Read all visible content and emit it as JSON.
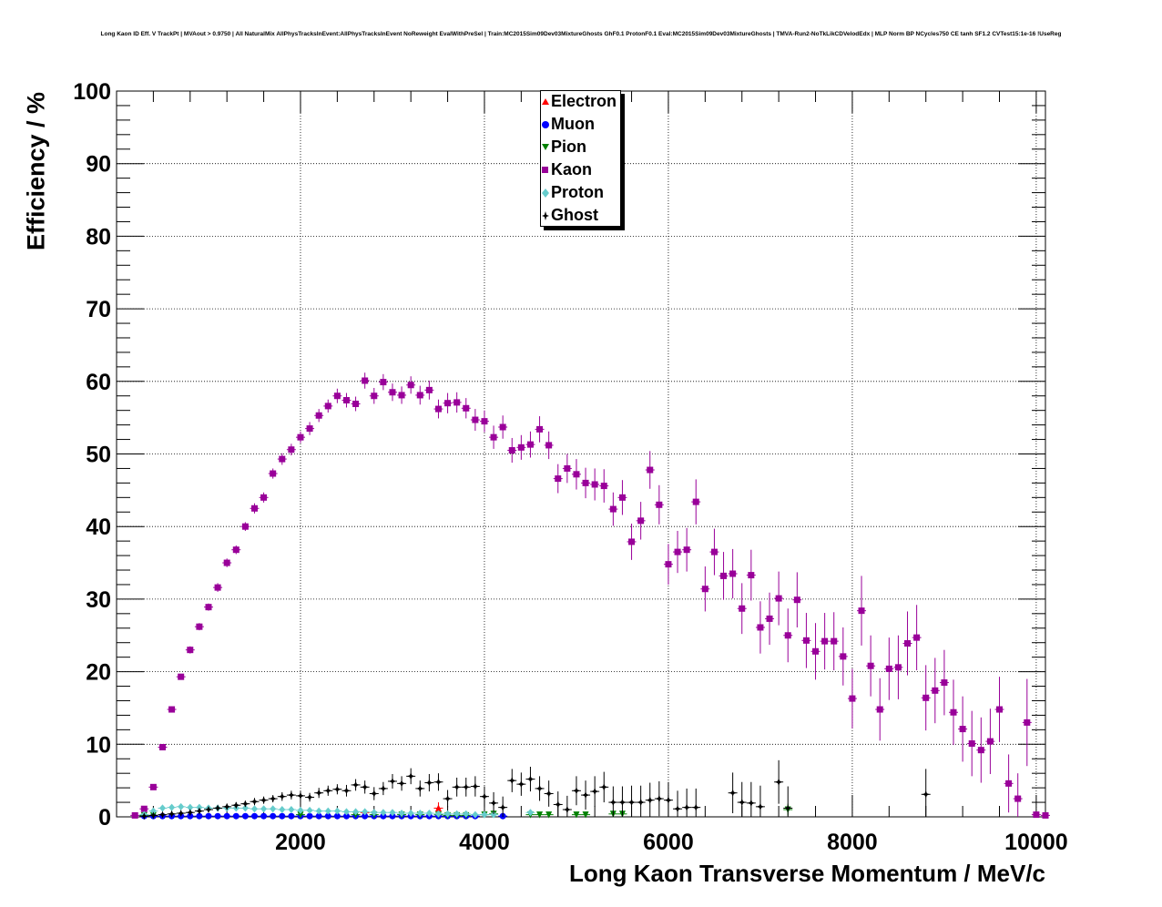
{
  "title": "Long Kaon ID Eff. V TrackPt | MVAout > 0.9750 | All NaturalMix AllPhysTracksInEvent:AllPhysTracksInEvent NoReweight EvalWithPreSel | Train:MC2015Sim09Dev03MixtureGhosts GhF0.1 ProtonF0.1 Eval:MC2015Sim09Dev03MixtureGhosts | TMVA-Run2-NoTkLikCDVelodEdx | MLP Norm BP NCycles750 CE tanh SF1.2 CVTest15:1e-16 !UseReg",
  "chart_data": {
    "type": "scatter",
    "title": "Long Kaon ID Eff. V TrackPt | MVAout > 0.9750 | All NaturalMix AllPhysTracksInEvent:AllPhysTracksInEvent NoReweight EvalWithPreSel | Train:MC2015Sim09Dev03MixtureGhosts GhF0.1 ProtonF0.1 Eval:MC2015Sim09Dev03MixtureGhosts | TMVA-Run2-NoTkLikCDVelodEdx | MLP Norm BP NCycles750 CE tanh SF1.2 CVTest15:1e-16 !UseReg",
    "xlabel": "Long Kaon Transverse Momentum / MeV/c",
    "ylabel": "Efficiency / %",
    "xlim": [
      0,
      10100
    ],
    "ylim": [
      0,
      100
    ],
    "xticks": [
      2000,
      4000,
      6000,
      8000,
      10000
    ],
    "yticks": [
      0,
      10,
      20,
      30,
      40,
      50,
      60,
      70,
      80,
      90,
      100
    ],
    "grid": true,
    "legend_position": "top-center",
    "series": [
      {
        "name": "Electron",
        "color": "#ff0000",
        "marker": "triangle-up",
        "x": [
          2700,
          3500
        ],
        "y": [
          0.6,
          1.2
        ],
        "yerr": [
          0.4,
          0.8
        ]
      },
      {
        "name": "Muon",
        "color": "#0000ff",
        "marker": "circle",
        "x": [
          300,
          400,
          500,
          600,
          700,
          800,
          900,
          1000,
          1100,
          1200,
          1300,
          1400,
          1500,
          1600,
          1700,
          1800,
          1900,
          2000,
          2100,
          2200,
          2300,
          2400,
          2500,
          2600,
          2700,
          2800,
          2900,
          3000,
          3100,
          3200,
          3300,
          3400,
          3500,
          3600,
          3700,
          3800,
          3900,
          4200
        ],
        "y": [
          0.1,
          0.1,
          0.1,
          0.1,
          0.1,
          0.1,
          0.1,
          0.1,
          0.1,
          0.1,
          0.1,
          0.1,
          0.1,
          0.1,
          0.1,
          0.1,
          0.1,
          0.1,
          0.1,
          0.1,
          0.1,
          0.1,
          0.1,
          0.1,
          0.1,
          0.1,
          0.1,
          0.1,
          0.1,
          0.1,
          0.1,
          0.1,
          0.1,
          0.1,
          0.1,
          0.1,
          0.1,
          0.1
        ],
        "yerr": [
          0.1,
          0.1,
          0.1,
          0.1,
          0.1,
          0.1,
          0.1,
          0.1,
          0.1,
          0.1,
          0.1,
          0.1,
          0.1,
          0.1,
          0.1,
          0.1,
          0.1,
          0.1,
          0.1,
          0.1,
          0.1,
          0.1,
          0.1,
          0.1,
          0.1,
          0.1,
          0.1,
          0.1,
          0.1,
          0.1,
          0.1,
          0.1,
          0.1,
          0.1,
          0.1,
          0.1,
          0.1,
          0.1
        ]
      },
      {
        "name": "Pion",
        "color": "#008000",
        "marker": "triangle-down",
        "x": [
          300,
          400,
          2000,
          2600,
          2800,
          3100,
          3300,
          3500,
          3600,
          3700,
          3800,
          4000,
          4100,
          4500,
          4600,
          4700,
          5000,
          5100,
          5400,
          5500,
          7300
        ],
        "y": [
          0.2,
          0.2,
          0.3,
          0.3,
          0.3,
          0.3,
          0.3,
          0.3,
          0.2,
          0.2,
          0.2,
          0.3,
          0.4,
          0.3,
          0.3,
          0.3,
          0.3,
          0.3,
          0.4,
          0.4,
          1.0
        ],
        "yerr": [
          0.1,
          0.1,
          0.2,
          0.2,
          0.2,
          0.2,
          0.2,
          0.2,
          0.2,
          0.2,
          0.2,
          0.3,
          0.4,
          0.3,
          0.3,
          0.3,
          0.3,
          0.3,
          0.4,
          0.4,
          0.8
        ]
      },
      {
        "name": "Kaon",
        "color": "#990099",
        "marker": "square",
        "x": [
          200,
          300,
          400,
          500,
          600,
          700,
          800,
          900,
          1000,
          1100,
          1200,
          1300,
          1400,
          1500,
          1600,
          1700,
          1800,
          1900,
          2000,
          2100,
          2200,
          2300,
          2400,
          2500,
          2600,
          2700,
          2800,
          2900,
          3000,
          3100,
          3200,
          3300,
          3400,
          3500,
          3600,
          3700,
          3800,
          3900,
          4000,
          4100,
          4200,
          4300,
          4400,
          4500,
          4600,
          4700,
          4800,
          4900,
          5000,
          5100,
          5200,
          5300,
          5400,
          5500,
          5600,
          5700,
          5800,
          5900,
          6000,
          6100,
          6200,
          6300,
          6400,
          6500,
          6600,
          6700,
          6800,
          6900,
          7000,
          7100,
          7200,
          7300,
          7400,
          7500,
          7600,
          7700,
          7800,
          7900,
          8000,
          8100,
          8200,
          8300,
          8400,
          8500,
          8600,
          8700,
          8800,
          8900,
          9000,
          9100,
          9200,
          9300,
          9400,
          9500,
          9600,
          9700,
          9800,
          9900,
          10000,
          10100
        ],
        "y": [
          0.2,
          1.1,
          4.1,
          9.6,
          14.8,
          19.3,
          23.0,
          26.2,
          28.9,
          31.6,
          35.0,
          36.8,
          40.0,
          42.5,
          44.0,
          47.3,
          49.3,
          50.6,
          52.3,
          53.5,
          55.3,
          56.6,
          58.0,
          57.4,
          56.9,
          60.1,
          58.0,
          59.9,
          58.5,
          58.1,
          59.5,
          58.1,
          58.8,
          56.2,
          57.0,
          57.1,
          56.3,
          54.7,
          54.5,
          52.3,
          53.7,
          50.5,
          50.9,
          51.3,
          53.4,
          51.2,
          46.6,
          48.0,
          47.2,
          46.0,
          45.8,
          45.6,
          42.4,
          44.0,
          37.9,
          40.8,
          47.8,
          43.0,
          34.8,
          36.5,
          36.8,
          43.4,
          31.4,
          36.5,
          33.2,
          33.5,
          28.7,
          33.3,
          26.1,
          27.3,
          30.1,
          25.0,
          29.9,
          24.3,
          22.8,
          24.2,
          24.2,
          22.1,
          16.3,
          28.4,
          20.8,
          14.8,
          20.4,
          20.6,
          23.9,
          24.7,
          16.4,
          17.4,
          18.5,
          14.4,
          12.1,
          10.1,
          9.2,
          10.4,
          14.8,
          4.6,
          2.5,
          13.0,
          0.3,
          0.2
        ],
        "yerr": [
          0.1,
          0.2,
          0.3,
          0.4,
          0.4,
          0.4,
          0.5,
          0.5,
          0.5,
          0.6,
          0.6,
          0.6,
          0.6,
          0.7,
          0.7,
          0.7,
          0.8,
          0.8,
          0.8,
          0.9,
          0.9,
          0.9,
          1.0,
          1.0,
          1.0,
          1.1,
          1.1,
          1.1,
          1.2,
          1.2,
          1.2,
          1.3,
          1.3,
          1.3,
          1.4,
          1.4,
          1.4,
          1.5,
          1.5,
          1.6,
          1.6,
          1.7,
          1.7,
          1.8,
          1.8,
          1.9,
          2.0,
          2.0,
          2.1,
          2.1,
          2.2,
          2.3,
          2.3,
          2.4,
          2.5,
          2.6,
          2.6,
          2.7,
          2.8,
          2.9,
          3.0,
          3.1,
          3.1,
          3.2,
          3.3,
          3.4,
          3.5,
          3.5,
          3.6,
          3.6,
          3.7,
          3.7,
          3.8,
          3.8,
          3.9,
          3.9,
          4.0,
          4.0,
          4.1,
          4.8,
          4.2,
          4.3,
          4.3,
          4.4,
          4.4,
          4.5,
          4.5,
          4.5,
          4.5,
          4.5,
          4.5,
          4.5,
          4.5,
          4.5,
          4.5,
          4.0,
          3.5,
          6.0,
          0.2,
          0.2
        ]
      },
      {
        "name": "Proton",
        "color": "#66cccc",
        "marker": "diamond",
        "x": [
          300,
          400,
          500,
          600,
          700,
          800,
          900,
          1000,
          1100,
          1200,
          1300,
          1400,
          1500,
          1600,
          1700,
          1800,
          1900,
          2000,
          2100,
          2200,
          2300,
          2400,
          2500,
          2600,
          2700,
          2800,
          2900,
          3000,
          3100,
          3200,
          3300,
          3400,
          3500,
          3600,
          3700,
          3800,
          3900,
          4000,
          4100,
          4500
        ],
        "y": [
          0.3,
          0.8,
          1.2,
          1.3,
          1.4,
          1.3,
          1.3,
          1.2,
          1.2,
          1.2,
          1.2,
          1.2,
          1.1,
          1.1,
          1.1,
          1.0,
          1.0,
          0.9,
          0.9,
          0.8,
          0.8,
          0.8,
          0.7,
          0.7,
          0.7,
          0.6,
          0.6,
          0.6,
          0.5,
          0.5,
          0.5,
          0.5,
          0.4,
          0.4,
          0.4,
          0.4,
          0.3,
          0.3,
          0.3,
          0.6
        ],
        "yerr": [
          0.1,
          0.1,
          0.1,
          0.1,
          0.1,
          0.1,
          0.1,
          0.1,
          0.1,
          0.1,
          0.1,
          0.1,
          0.1,
          0.1,
          0.1,
          0.1,
          0.1,
          0.1,
          0.1,
          0.1,
          0.1,
          0.1,
          0.1,
          0.1,
          0.1,
          0.1,
          0.1,
          0.1,
          0.1,
          0.1,
          0.1,
          0.1,
          0.1,
          0.1,
          0.1,
          0.1,
          0.1,
          0.1,
          0.1,
          0.4
        ]
      },
      {
        "name": "Ghost",
        "color": "#000000",
        "marker": "star",
        "x": [
          300,
          400,
          500,
          600,
          700,
          800,
          900,
          1000,
          1100,
          1200,
          1300,
          1400,
          1500,
          1600,
          1700,
          1800,
          1900,
          2000,
          2100,
          2200,
          2300,
          2400,
          2500,
          2600,
          2700,
          2800,
          2900,
          3000,
          3100,
          3200,
          3300,
          3400,
          3500,
          3600,
          3700,
          3800,
          3900,
          4000,
          4100,
          4200,
          4300,
          4400,
          4500,
          4600,
          4700,
          4800,
          4900,
          5000,
          5100,
          5200,
          5300,
          5400,
          5500,
          5600,
          5700,
          5800,
          5900,
          6000,
          6100,
          6200,
          6300,
          6700,
          6800,
          6900,
          7000,
          7200,
          7300,
          8800
        ],
        "y": [
          0.1,
          0.2,
          0.3,
          0.4,
          0.5,
          0.6,
          0.8,
          1.0,
          1.2,
          1.4,
          1.6,
          1.8,
          2.1,
          2.3,
          2.5,
          2.8,
          3.0,
          2.9,
          2.7,
          3.3,
          3.6,
          3.8,
          3.6,
          4.4,
          4.1,
          3.2,
          3.9,
          4.9,
          4.6,
          5.6,
          3.9,
          4.7,
          4.8,
          2.5,
          4.1,
          4.1,
          4.2,
          2.8,
          1.9,
          1.3,
          5.0,
          4.5,
          5.2,
          3.9,
          3.2,
          1.7,
          1.0,
          3.6,
          3.0,
          3.5,
          4.1,
          2.0,
          2.0,
          2.0,
          2.0,
          2.3,
          2.5,
          2.3,
          1.1,
          1.3,
          1.3,
          3.3,
          2.0,
          1.9,
          1.4,
          4.8,
          1.2,
          3.1
        ],
        "yerr": [
          0.1,
          0.1,
          0.1,
          0.2,
          0.2,
          0.2,
          0.3,
          0.3,
          0.3,
          0.4,
          0.4,
          0.4,
          0.5,
          0.5,
          0.5,
          0.6,
          0.6,
          0.6,
          0.6,
          0.7,
          0.7,
          0.7,
          0.8,
          0.8,
          0.9,
          0.9,
          0.9,
          1.0,
          1.0,
          1.1,
          1.1,
          1.2,
          1.2,
          1.2,
          1.3,
          1.3,
          1.4,
          1.4,
          1.5,
          1.5,
          1.6,
          1.6,
          1.7,
          1.7,
          1.8,
          1.8,
          1.9,
          2.0,
          2.0,
          2.1,
          2.1,
          2.2,
          2.2,
          2.3,
          2.3,
          2.4,
          2.4,
          2.5,
          2.5,
          2.6,
          2.6,
          2.8,
          2.8,
          2.9,
          2.9,
          3.0,
          3.0,
          3.5
        ]
      }
    ]
  }
}
